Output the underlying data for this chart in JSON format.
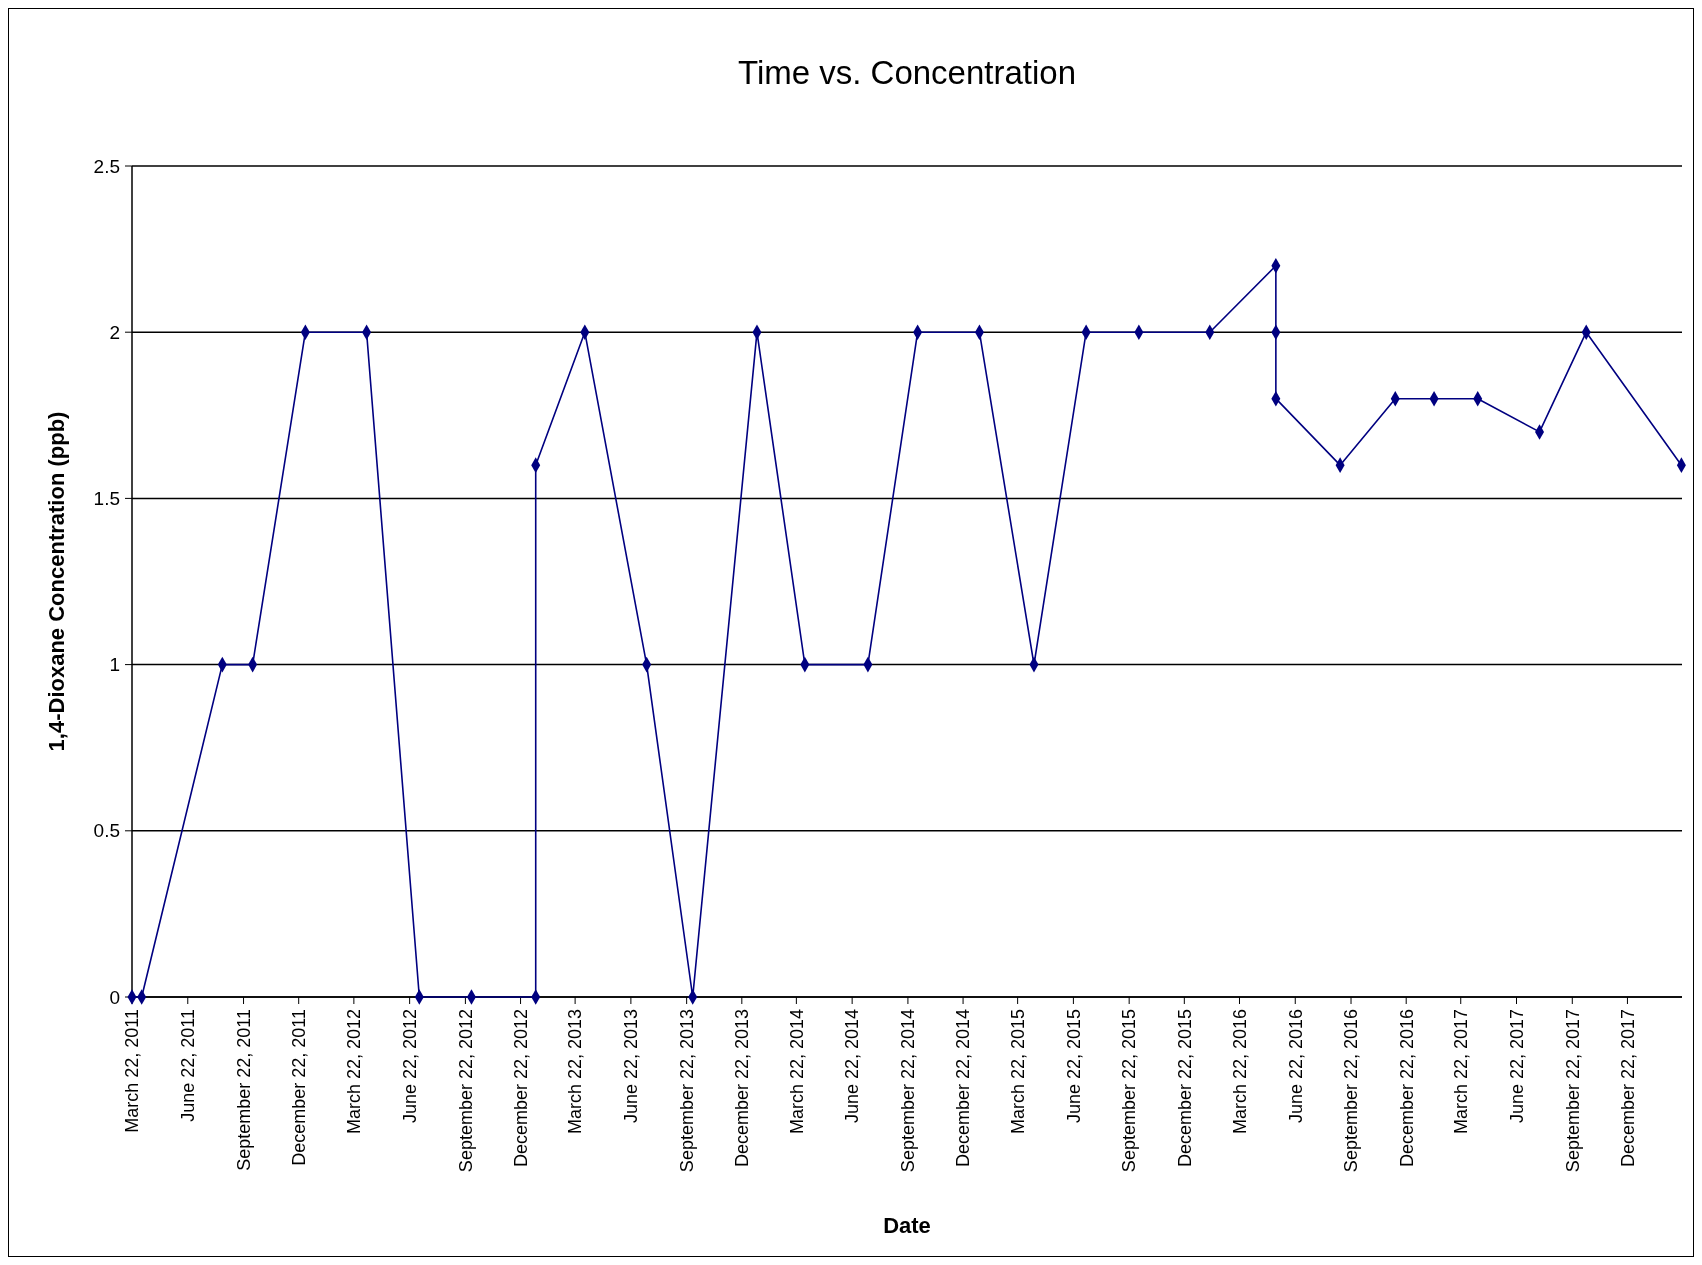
{
  "chart_data": {
    "type": "line",
    "title": "Time vs. Concentration",
    "xlabel": "Date",
    "ylabel": "1,4-Dioxane Concentration (ppb)",
    "x": [
      "2011-03-22",
      "2011-04-07",
      "2011-08-18",
      "2011-10-07",
      "2012-01-02",
      "2012-04-12",
      "2012-07-08",
      "2012-10-02",
      "2013-01-16",
      "2013-01-16",
      "2013-04-07",
      "2013-07-18",
      "2013-10-02",
      "2014-01-16",
      "2014-04-05",
      "2014-07-18",
      "2014-10-08",
      "2015-01-18",
      "2015-04-18",
      "2015-07-13",
      "2015-10-08",
      "2016-02-02",
      "2016-05-21",
      "2016-05-21",
      "2016-05-21",
      "2016-09-04",
      "2016-12-04",
      "2017-02-06",
      "2017-04-19",
      "2017-07-30",
      "2017-10-15",
      "2018-03-21"
    ],
    "series": [
      {
        "color": "#000080",
        "values": [
          0,
          0,
          1,
          1,
          2,
          2,
          0,
          0,
          0,
          1.6,
          2,
          1,
          0,
          2,
          1,
          1,
          2,
          2,
          1,
          2,
          2,
          2,
          2.2,
          2,
          1.8,
          1.6,
          1.8,
          1.8,
          1.8,
          1.7,
          2,
          1.6
        ]
      }
    ],
    "xlim": [
      "2011-03-22",
      "2018-03-22"
    ],
    "xticks": [
      {
        "value": "2011-03-22",
        "label": "March 22, 2011"
      },
      {
        "value": "2011-06-22",
        "label": "June 22, 2011"
      },
      {
        "value": "2011-09-22",
        "label": "September 22, 2011"
      },
      {
        "value": "2011-12-22",
        "label": "December 22, 2011"
      },
      {
        "value": "2012-03-22",
        "label": "March 22, 2012"
      },
      {
        "value": "2012-06-22",
        "label": "June 22, 2012"
      },
      {
        "value": "2012-09-22",
        "label": "September 22, 2012"
      },
      {
        "value": "2012-12-22",
        "label": "December 22, 2012"
      },
      {
        "value": "2013-03-22",
        "label": "March 22, 2013"
      },
      {
        "value": "2013-06-22",
        "label": "June 22, 2013"
      },
      {
        "value": "2013-09-22",
        "label": "September 22, 2013"
      },
      {
        "value": "2013-12-22",
        "label": "December 22, 2013"
      },
      {
        "value": "2014-03-22",
        "label": "March 22, 2014"
      },
      {
        "value": "2014-06-22",
        "label": "June 22, 2014"
      },
      {
        "value": "2014-09-22",
        "label": "September 22, 2014"
      },
      {
        "value": "2014-12-22",
        "label": "December 22, 2014"
      },
      {
        "value": "2015-03-22",
        "label": "March 22, 2015"
      },
      {
        "value": "2015-06-22",
        "label": "June 22, 2015"
      },
      {
        "value": "2015-09-22",
        "label": "September 22, 2015"
      },
      {
        "value": "2015-12-22",
        "label": "December 22, 2015"
      },
      {
        "value": "2016-03-22",
        "label": "March 22, 2016"
      },
      {
        "value": "2016-06-22",
        "label": "June 22, 2016"
      },
      {
        "value": "2016-09-22",
        "label": "September 22, 2016"
      },
      {
        "value": "2016-12-22",
        "label": "December 22, 2016"
      },
      {
        "value": "2017-03-22",
        "label": "March 22, 2017"
      },
      {
        "value": "2017-06-22",
        "label": "June 22, 2017"
      },
      {
        "value": "2017-09-22",
        "label": "September 22, 2017"
      },
      {
        "value": "2017-12-22",
        "label": "December 22, 2017"
      }
    ],
    "ylim": [
      0,
      2.5
    ],
    "yticks": [
      0,
      0.5,
      1,
      1.5,
      2,
      2.5
    ],
    "grid": "y",
    "marker": "diamond",
    "line_style": "solid"
  }
}
